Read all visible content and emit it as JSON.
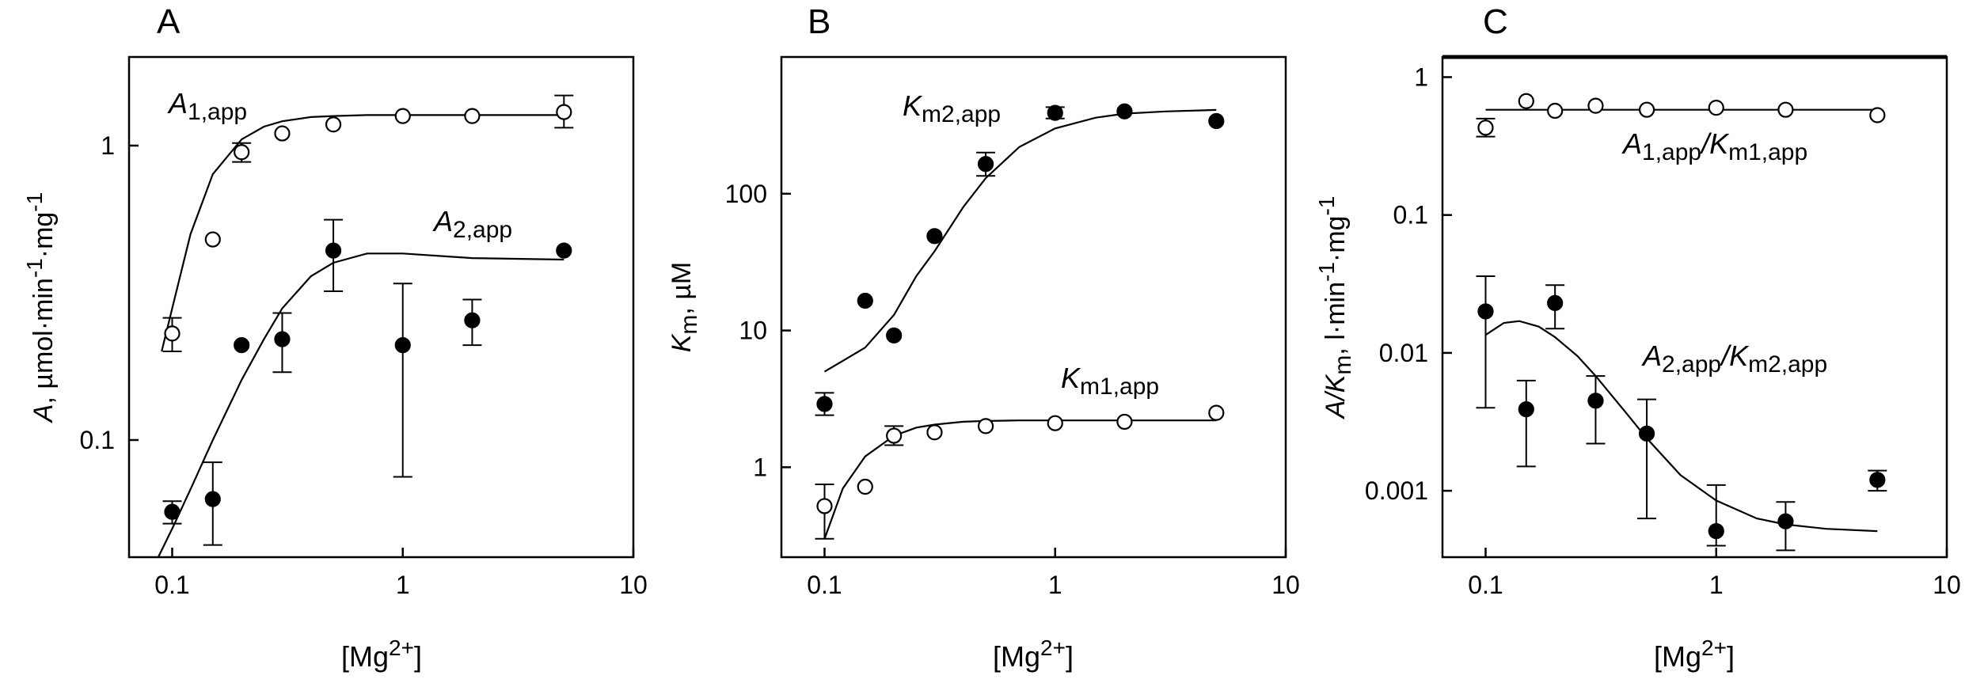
{
  "chart_data": [
    {
      "type": "scatter",
      "panel_label": "A",
      "xscale": "log",
      "yscale": "log",
      "xlim": [
        0.065,
        10
      ],
      "ylim": [
        0.04,
        2
      ],
      "x_ticks": [
        0.1,
        1,
        10
      ],
      "x_tick_labels": [
        "0.1",
        "1",
        "10"
      ],
      "y_ticks": [
        0.1,
        1
      ],
      "y_tick_labels": [
        "0.1",
        "1"
      ],
      "xlabel": {
        "main": "[Mg",
        "sup": "2+",
        "close": "]"
      },
      "ylabel": {
        "prefix": "A",
        "unit": ", µmol·min",
        "exp": "-1",
        "sep": "·mg",
        "exp2": "-1"
      },
      "series": [
        {
          "name": "A1,app",
          "marker": "open-circle",
          "label": {
            "main": "A",
            "sub": "1,app"
          },
          "points": [
            {
              "x": 0.1,
              "y": 0.23,
              "err": [
                0.2,
                0.26
              ]
            },
            {
              "x": 0.15,
              "y": 0.48
            },
            {
              "x": 0.2,
              "y": 0.95,
              "err": [
                0.88,
                1.02
              ]
            },
            {
              "x": 0.3,
              "y": 1.1
            },
            {
              "x": 0.5,
              "y": 1.18
            },
            {
              "x": 1,
              "y": 1.26
            },
            {
              "x": 2,
              "y": 1.26
            },
            {
              "x": 5,
              "y": 1.3,
              "err": [
                1.15,
                1.48
              ]
            }
          ],
          "fit": {
            "x": [
              0.09,
              0.1,
              0.12,
              0.15,
              0.2,
              0.25,
              0.3,
              0.4,
              0.5,
              0.7,
              1,
              2,
              5
            ],
            "y": [
              0.2,
              0.28,
              0.5,
              0.8,
              1.05,
              1.16,
              1.21,
              1.25,
              1.26,
              1.27,
              1.27,
              1.27,
              1.27
            ]
          }
        },
        {
          "name": "A2,app",
          "marker": "filled-circle",
          "label": {
            "main": "A",
            "sub": "2,app"
          },
          "points": [
            {
              "x": 0.1,
              "y": 0.057,
              "err": [
                0.052,
                0.062
              ]
            },
            {
              "x": 0.15,
              "y": 0.063,
              "err": [
                0.044,
                0.084
              ]
            },
            {
              "x": 0.2,
              "y": 0.21
            },
            {
              "x": 0.3,
              "y": 0.22,
              "err": [
                0.17,
                0.27
              ]
            },
            {
              "x": 0.5,
              "y": 0.44,
              "err": [
                0.32,
                0.56
              ]
            },
            {
              "x": 1,
              "y": 0.21,
              "err": [
                0.075,
                0.34
              ]
            },
            {
              "x": 2,
              "y": 0.255,
              "err": [
                0.21,
                0.3
              ]
            },
            {
              "x": 5,
              "y": 0.44
            }
          ],
          "fit": {
            "x": [
              0.087,
              0.1,
              0.12,
              0.15,
              0.2,
              0.25,
              0.3,
              0.4,
              0.5,
              0.7,
              1,
              2,
              5
            ],
            "y": [
              0.04,
              0.05,
              0.068,
              0.1,
              0.16,
              0.22,
              0.28,
              0.36,
              0.4,
              0.43,
              0.43,
              0.415,
              0.41
            ]
          }
        }
      ]
    },
    {
      "type": "scatter",
      "panel_label": "B",
      "xscale": "log",
      "yscale": "log",
      "xlim": [
        0.065,
        10
      ],
      "ylim": [
        0.22,
        1000
      ],
      "x_ticks": [
        0.1,
        1,
        10
      ],
      "x_tick_labels": [
        "0.1",
        "1",
        "10"
      ],
      "y_ticks": [
        1,
        10,
        100
      ],
      "y_tick_labels": [
        "1",
        "10",
        "100"
      ],
      "xlabel": {
        "main": "[Mg",
        "sup": "2+",
        "close": "]"
      },
      "ylabel": {
        "prefix": "K",
        "sub": "m",
        "unit": ", µM"
      },
      "series": [
        {
          "name": "Km2,app",
          "marker": "filled-circle",
          "label": {
            "main": "K",
            "sub": "m2,app"
          },
          "points": [
            {
              "x": 0.1,
              "y": 2.9,
              "err": [
                2.4,
                3.5
              ]
            },
            {
              "x": 0.15,
              "y": 16.5
            },
            {
              "x": 0.2,
              "y": 9.2
            },
            {
              "x": 0.3,
              "y": 49
            },
            {
              "x": 0.5,
              "y": 165,
              "err": [
                135,
                200
              ]
            },
            {
              "x": 1,
              "y": 390,
              "err": [
                355,
                430
              ]
            },
            {
              "x": 2,
              "y": 400
            },
            {
              "x": 5,
              "y": 340
            }
          ],
          "fit": {
            "x": [
              0.1,
              0.12,
              0.15,
              0.2,
              0.25,
              0.3,
              0.4,
              0.5,
              0.7,
              1,
              1.5,
              2,
              3,
              5
            ],
            "y": [
              5,
              6,
              7.5,
              13,
              25,
              38,
              80,
              130,
              220,
              300,
              360,
              385,
              400,
              410
            ]
          }
        },
        {
          "name": "Km1,app",
          "marker": "open-circle",
          "label": {
            "main": "K",
            "sub": "m1,app"
          },
          "points": [
            {
              "x": 0.1,
              "y": 0.52,
              "err": [
                0.3,
                0.75
              ]
            },
            {
              "x": 0.15,
              "y": 0.72
            },
            {
              "x": 0.2,
              "y": 1.7,
              "err": [
                1.45,
                2.0
              ]
            },
            {
              "x": 0.3,
              "y": 1.8
            },
            {
              "x": 0.5,
              "y": 2.0
            },
            {
              "x": 1,
              "y": 2.1
            },
            {
              "x": 2,
              "y": 2.15
            },
            {
              "x": 5,
              "y": 2.5
            }
          ],
          "fit": {
            "x": [
              0.1,
              0.12,
              0.15,
              0.2,
              0.25,
              0.3,
              0.4,
              0.5,
              0.7,
              1,
              2,
              5
            ],
            "y": [
              0.3,
              0.7,
              1.2,
              1.7,
              1.95,
              2.05,
              2.15,
              2.18,
              2.2,
              2.2,
              2.2,
              2.2
            ]
          }
        }
      ]
    },
    {
      "type": "scatter",
      "panel_label": "C",
      "xscale": "log",
      "yscale": "log",
      "xlim": [
        0.065,
        10
      ],
      "ylim": [
        0.00033,
        1.4
      ],
      "x_ticks": [
        0.1,
        1,
        10
      ],
      "x_tick_labels": [
        "0.1",
        "1",
        "10"
      ],
      "y_ticks": [
        0.001,
        0.01,
        0.1,
        1
      ],
      "y_tick_labels": [
        "0.001",
        "0.01",
        "0.1",
        "1"
      ],
      "xlabel": {
        "main": "[Mg",
        "sup": "2+",
        "close": "]"
      },
      "ylabel": {
        "prefix": "A/K",
        "sub": "m",
        "unit": ", l·min",
        "exp": "-1",
        "sep": "·mg",
        "exp2": "-1"
      },
      "series": [
        {
          "name": "A1,app/Km1,app",
          "marker": "open-circle",
          "label": {
            "main": "A",
            "sub": "1,app",
            "mid": "/K",
            "sub2": "m1,app"
          },
          "points": [
            {
              "x": 0.1,
              "y": 0.43,
              "err": [
                0.37,
                0.5
              ]
            },
            {
              "x": 0.15,
              "y": 0.67
            },
            {
              "x": 0.2,
              "y": 0.57
            },
            {
              "x": 0.3,
              "y": 0.62
            },
            {
              "x": 0.5,
              "y": 0.58
            },
            {
              "x": 1,
              "y": 0.6
            },
            {
              "x": 2,
              "y": 0.58
            },
            {
              "x": 5,
              "y": 0.53
            }
          ],
          "fit": {
            "x": [
              0.1,
              5
            ],
            "y": [
              0.58,
              0.58
            ]
          }
        },
        {
          "name": "A2,app/Km2,app",
          "marker": "filled-circle",
          "label": {
            "main": "A",
            "sub": "2,app",
            "mid": "/K",
            "sub2": "m2,app"
          },
          "points": [
            {
              "x": 0.1,
              "y": 0.02,
              "err": [
                0.004,
                0.036
              ]
            },
            {
              "x": 0.15,
              "y": 0.0039,
              "err": [
                0.0015,
                0.0063
              ]
            },
            {
              "x": 0.2,
              "y": 0.023,
              "err": [
                0.015,
                0.031
              ]
            },
            {
              "x": 0.3,
              "y": 0.0045,
              "err": [
                0.0022,
                0.0068
              ]
            },
            {
              "x": 0.5,
              "y": 0.0026,
              "err": [
                0.00063,
                0.0046
              ]
            },
            {
              "x": 1,
              "y": 0.00051,
              "err": [
                0.0004,
                0.0011
              ]
            },
            {
              "x": 2,
              "y": 0.0006,
              "err": [
                0.00037,
                0.00083
              ]
            },
            {
              "x": 5,
              "y": 0.0012,
              "err": [
                0.001,
                0.0014
              ]
            }
          ],
          "fit": {
            "x": [
              0.1,
              0.12,
              0.14,
              0.17,
              0.2,
              0.25,
              0.3,
              0.4,
              0.5,
              0.7,
              1,
              1.5,
              2,
              3,
              5
            ],
            "y": [
              0.0135,
              0.0165,
              0.017,
              0.0155,
              0.013,
              0.0095,
              0.0068,
              0.0038,
              0.0024,
              0.0013,
              0.00085,
              0.00063,
              0.00057,
              0.00053,
              0.00051
            ]
          }
        }
      ]
    }
  ]
}
